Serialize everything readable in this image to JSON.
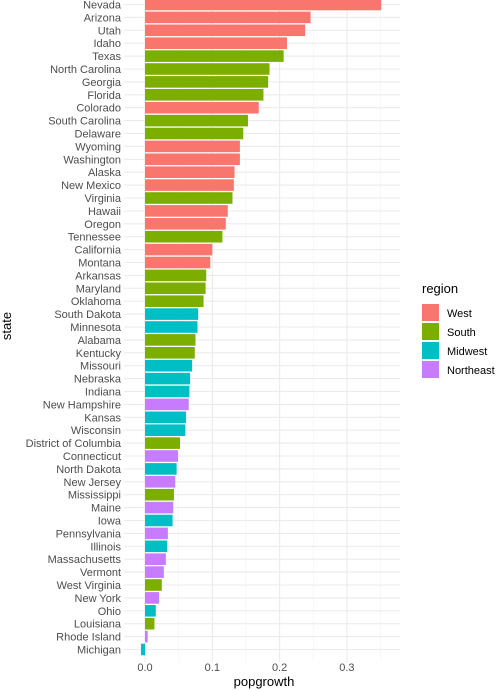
{
  "chart_data": {
    "type": "bar",
    "orientation": "horizontal",
    "xlabel": "popgrowth",
    "ylabel": "state",
    "xlim": [
      -0.02,
      0.37
    ],
    "x_ticks": [
      0.0,
      0.1,
      0.2,
      0.3
    ],
    "x_tick_labels": [
      "0.0",
      "0.1",
      "0.2",
      "0.3"
    ],
    "grid": true,
    "legend": {
      "title": "region",
      "placement": "right",
      "entries": [
        {
          "name": "West",
          "color": "#F8766D"
        },
        {
          "name": "South",
          "color": "#7CAE00"
        },
        {
          "name": "Midwest",
          "color": "#00BFC4"
        },
        {
          "name": "Northeast",
          "color": "#C77CFF"
        }
      ]
    },
    "bars": [
      {
        "state": "Nevada",
        "value": 0.351,
        "region": "West"
      },
      {
        "state": "Arizona",
        "value": 0.246,
        "region": "West"
      },
      {
        "state": "Utah",
        "value": 0.238,
        "region": "West"
      },
      {
        "state": "Idaho",
        "value": 0.211,
        "region": "West"
      },
      {
        "state": "Texas",
        "value": 0.206,
        "region": "South"
      },
      {
        "state": "North Carolina",
        "value": 0.185,
        "region": "South"
      },
      {
        "state": "Georgia",
        "value": 0.183,
        "region": "South"
      },
      {
        "state": "Florida",
        "value": 0.176,
        "region": "South"
      },
      {
        "state": "Colorado",
        "value": 0.169,
        "region": "West"
      },
      {
        "state": "South Carolina",
        "value": 0.153,
        "region": "South"
      },
      {
        "state": "Delaware",
        "value": 0.146,
        "region": "South"
      },
      {
        "state": "Wyoming",
        "value": 0.141,
        "region": "West"
      },
      {
        "state": "Washington",
        "value": 0.141,
        "region": "West"
      },
      {
        "state": "Alaska",
        "value": 0.133,
        "region": "West"
      },
      {
        "state": "New Mexico",
        "value": 0.132,
        "region": "West"
      },
      {
        "state": "Virginia",
        "value": 0.13,
        "region": "South"
      },
      {
        "state": "Hawaii",
        "value": 0.123,
        "region": "West"
      },
      {
        "state": "Oregon",
        "value": 0.12,
        "region": "West"
      },
      {
        "state": "Tennessee",
        "value": 0.115,
        "region": "South"
      },
      {
        "state": "California",
        "value": 0.1,
        "region": "West"
      },
      {
        "state": "Montana",
        "value": 0.097,
        "region": "West"
      },
      {
        "state": "Arkansas",
        "value": 0.091,
        "region": "South"
      },
      {
        "state": "Maryland",
        "value": 0.09,
        "region": "South"
      },
      {
        "state": "Oklahoma",
        "value": 0.087,
        "region": "South"
      },
      {
        "state": "South Dakota",
        "value": 0.079,
        "region": "Midwest"
      },
      {
        "state": "Minnesota",
        "value": 0.078,
        "region": "Midwest"
      },
      {
        "state": "Alabama",
        "value": 0.075,
        "region": "South"
      },
      {
        "state": "Kentucky",
        "value": 0.074,
        "region": "South"
      },
      {
        "state": "Missouri",
        "value": 0.07,
        "region": "Midwest"
      },
      {
        "state": "Nebraska",
        "value": 0.067,
        "region": "Midwest"
      },
      {
        "state": "Indiana",
        "value": 0.066,
        "region": "Midwest"
      },
      {
        "state": "New Hampshire",
        "value": 0.065,
        "region": "Northeast"
      },
      {
        "state": "Kansas",
        "value": 0.061,
        "region": "Midwest"
      },
      {
        "state": "Wisconsin",
        "value": 0.06,
        "region": "Midwest"
      },
      {
        "state": "District of Columbia",
        "value": 0.052,
        "region": "South"
      },
      {
        "state": "Connecticut",
        "value": 0.049,
        "region": "Northeast"
      },
      {
        "state": "North Dakota",
        "value": 0.047,
        "region": "Midwest"
      },
      {
        "state": "New Jersey",
        "value": 0.045,
        "region": "Northeast"
      },
      {
        "state": "Mississippi",
        "value": 0.043,
        "region": "South"
      },
      {
        "state": "Maine",
        "value": 0.042,
        "region": "Northeast"
      },
      {
        "state": "Iowa",
        "value": 0.041,
        "region": "Midwest"
      },
      {
        "state": "Pennsylvania",
        "value": 0.034,
        "region": "Northeast"
      },
      {
        "state": "Illinois",
        "value": 0.033,
        "region": "Midwest"
      },
      {
        "state": "Massachusetts",
        "value": 0.031,
        "region": "Northeast"
      },
      {
        "state": "Vermont",
        "value": 0.028,
        "region": "Northeast"
      },
      {
        "state": "West Virginia",
        "value": 0.025,
        "region": "South"
      },
      {
        "state": "New York",
        "value": 0.021,
        "region": "Northeast"
      },
      {
        "state": "Ohio",
        "value": 0.016,
        "region": "Midwest"
      },
      {
        "state": "Louisiana",
        "value": 0.014,
        "region": "South"
      },
      {
        "state": "Rhode Island",
        "value": 0.004,
        "region": "Northeast"
      },
      {
        "state": "Michigan",
        "value": -0.006,
        "region": "Midwest"
      }
    ]
  }
}
